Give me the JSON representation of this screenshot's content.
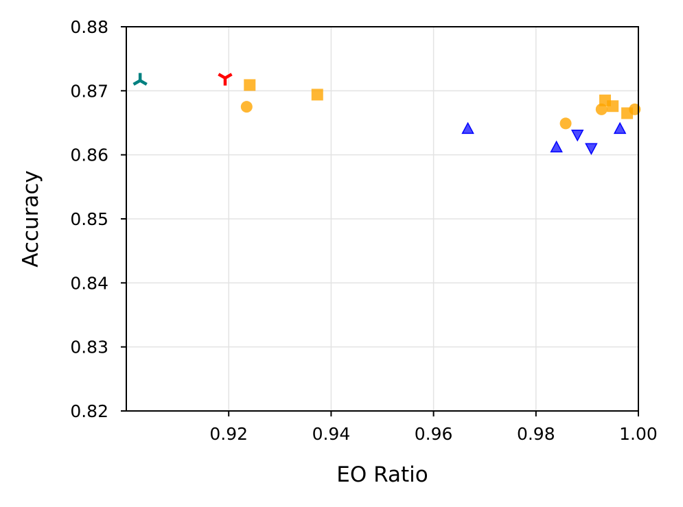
{
  "chart_data": {
    "type": "scatter",
    "title": "",
    "xlabel": "EO Ratio",
    "ylabel": "Accuracy",
    "xlim": [
      0.9,
      1.0
    ],
    "ylim": [
      0.82,
      0.88
    ],
    "xticks": [
      0.92,
      0.94,
      0.96,
      0.98,
      1.0
    ],
    "xtick_labels": [
      "0.92",
      "0.94",
      "0.96",
      "0.98",
      "1.00"
    ],
    "yticks": [
      0.82,
      0.83,
      0.84,
      0.85,
      0.86,
      0.87,
      0.88
    ],
    "ytick_labels": [
      "0.82",
      "0.83",
      "0.84",
      "0.85",
      "0.86",
      "0.87",
      "0.88"
    ],
    "grid": true,
    "legend": "none",
    "series": [
      {
        "marker": "tri_up",
        "color": "#008080",
        "points": [
          [
            0.9027,
            0.8716
          ]
        ]
      },
      {
        "marker": "tri_down",
        "color": "#ff0000",
        "points": [
          [
            0.9193,
            0.872
          ]
        ]
      },
      {
        "marker": "square",
        "color": "#ffa500",
        "points": [
          [
            0.9241,
            0.8709
          ],
          [
            0.9373,
            0.8694
          ],
          [
            0.9935,
            0.8685
          ],
          [
            0.995,
            0.8676
          ],
          [
            0.9978,
            0.8665
          ]
        ]
      },
      {
        "marker": "circle",
        "color": "#ffa500",
        "points": [
          [
            0.9235,
            0.8675
          ],
          [
            0.9858,
            0.8649
          ],
          [
            0.9928,
            0.8671
          ],
          [
            0.9993,
            0.8671
          ]
        ]
      },
      {
        "marker": "triangle_up",
        "color": "#0000ff",
        "points": [
          [
            0.9667,
            0.864
          ],
          [
            0.984,
            0.8611
          ],
          [
            0.9964,
            0.864
          ]
        ]
      },
      {
        "marker": "triangle_down",
        "color": "#0000ff",
        "points": [
          [
            0.9881,
            0.8632
          ],
          [
            0.9908,
            0.8611
          ]
        ]
      }
    ]
  }
}
